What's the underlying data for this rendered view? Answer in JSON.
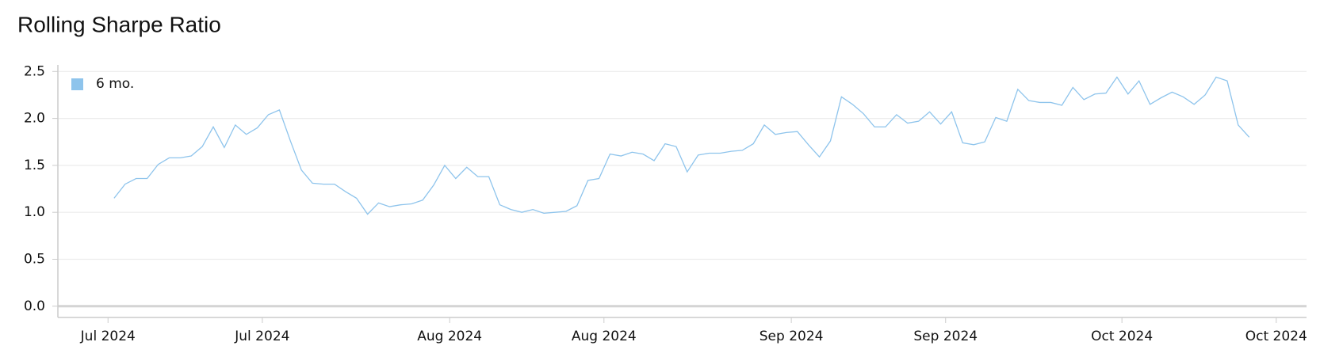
{
  "chart_data": {
    "type": "line",
    "title": "Rolling Sharpe Ratio",
    "categories": [
      null,
      null,
      null,
      null,
      null,
      null,
      null,
      null,
      null,
      null,
      null,
      null,
      null,
      null,
      null,
      null,
      null,
      null,
      null,
      null,
      null,
      null,
      null,
      null,
      null,
      null,
      null,
      null,
      null,
      null,
      null,
      null,
      null,
      null,
      null,
      null,
      null,
      null,
      null,
      null,
      null,
      null,
      null,
      null,
      null,
      null,
      null,
      null,
      null,
      null,
      null,
      null,
      null,
      null,
      null,
      null,
      null,
      null,
      null,
      null,
      null,
      null,
      null,
      null,
      null,
      null,
      null,
      null,
      null,
      null,
      null,
      null,
      null,
      null,
      null,
      null,
      null,
      null,
      null,
      null,
      null,
      null,
      null,
      null,
      null,
      null,
      null,
      null,
      null,
      null,
      null,
      null,
      null,
      null,
      null,
      null,
      null,
      null,
      null,
      null,
      null,
      null,
      null,
      null
    ],
    "series": [
      {
        "name": "6 mo.",
        "color": "#8ec4ec",
        "values": [
          1.15,
          1.3,
          1.36,
          1.36,
          1.51,
          1.58,
          1.58,
          1.6,
          1.7,
          1.91,
          1.69,
          1.93,
          1.83,
          1.9,
          2.04,
          2.09,
          1.76,
          1.45,
          1.31,
          1.3,
          1.3,
          1.22,
          1.15,
          0.98,
          1.1,
          1.06,
          1.08,
          1.09,
          1.13,
          1.29,
          1.5,
          1.36,
          1.48,
          1.38,
          1.38,
          1.08,
          1.03,
          1.0,
          1.03,
          0.99,
          1.0,
          1.01,
          1.07,
          1.34,
          1.36,
          1.62,
          1.6,
          1.64,
          1.62,
          1.55,
          1.73,
          1.7,
          1.43,
          1.61,
          1.63,
          1.63,
          1.65,
          1.66,
          1.73,
          1.93,
          1.83,
          1.85,
          1.86,
          1.72,
          1.59,
          1.76,
          2.23,
          2.15,
          2.05,
          1.91,
          1.91,
          2.04,
          1.95,
          1.97,
          2.07,
          1.94,
          2.07,
          1.74,
          1.72,
          1.75,
          2.01,
          1.97,
          2.31,
          2.19,
          2.17,
          2.17,
          2.14,
          2.33,
          2.2,
          2.26,
          2.27,
          2.44,
          2.26,
          2.4,
          2.15,
          2.22,
          2.28,
          2.23,
          2.15,
          2.25,
          2.44,
          2.4,
          1.93,
          1.8
        ]
      }
    ],
    "xlim": [
      -5.1,
      108.2
    ],
    "xticks": [
      {
        "value": -0.55,
        "label": "Jul 2024"
      },
      {
        "value": 13.45,
        "label": "Jul 2024"
      },
      {
        "value": 30.45,
        "label": "Aug 2024"
      },
      {
        "value": 44.45,
        "label": "Aug 2024"
      },
      {
        "value": 61.45,
        "label": "Sep 2024"
      },
      {
        "value": 75.45,
        "label": "Sep 2024"
      },
      {
        "value": 91.45,
        "label": "Oct 2024"
      },
      {
        "value": 105.45,
        "label": "Oct 2024"
      }
    ],
    "ylim": [
      -0.12,
      2.57
    ],
    "yticks": [
      {
        "value": 0,
        "label": "0.0"
      },
      {
        "value": 0.5,
        "label": "0.5"
      },
      {
        "value": 1,
        "label": "1.0"
      },
      {
        "value": 1.5,
        "label": "1.5"
      },
      {
        "value": 2,
        "label": "2.0"
      },
      {
        "value": 2.5,
        "label": "2.5"
      }
    ],
    "grid": true,
    "legend": "upper-left"
  }
}
